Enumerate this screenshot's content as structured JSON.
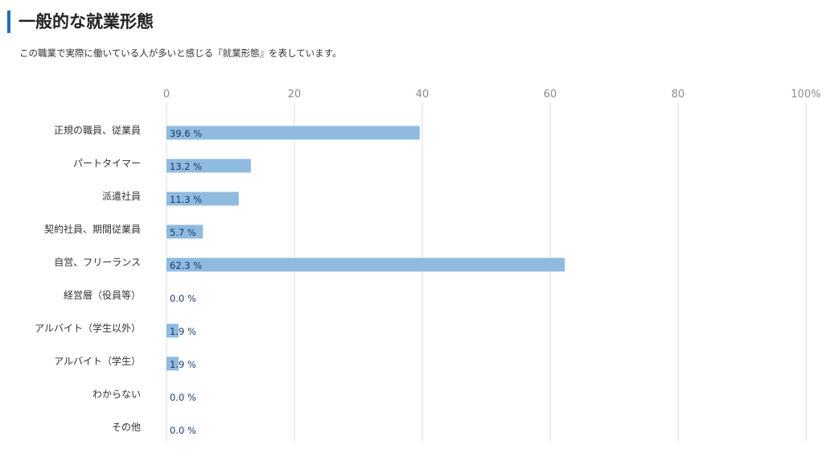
{
  "heading": "一般的な就業形態",
  "subtitle": "この職業で実際に働いている人が多いと感じる『就業形態』を表しています。",
  "colors": {
    "accent": "#1f6fb8",
    "bar": "#8fbbe0",
    "grid": "#dddddd",
    "value_text": "#1d3a6a"
  },
  "chart_data": {
    "type": "bar",
    "orientation": "horizontal",
    "categories": [
      "正規の職員、従業員",
      "パートタイマー",
      "派遣社員",
      "契約社員、期間従業員",
      "自営、フリーランス",
      "経営層（役員等）",
      "アルバイト（学生以外）",
      "アルバイト（学生）",
      "わからない",
      "その他"
    ],
    "values": [
      39.6,
      13.2,
      11.3,
      5.7,
      62.3,
      0.0,
      1.9,
      1.9,
      0.0,
      0.0
    ],
    "value_labels": [
      "39.6 %",
      "13.2 %",
      "11.3 %",
      "5.7 %",
      "62.3 %",
      "0.0 %",
      "1.9 %",
      "1.9 %",
      "0.0 %",
      "0.0 %"
    ],
    "xlim": [
      0,
      100
    ],
    "xticks": [
      "0",
      "20",
      "40",
      "60",
      "80",
      "100%"
    ],
    "grid": true
  }
}
